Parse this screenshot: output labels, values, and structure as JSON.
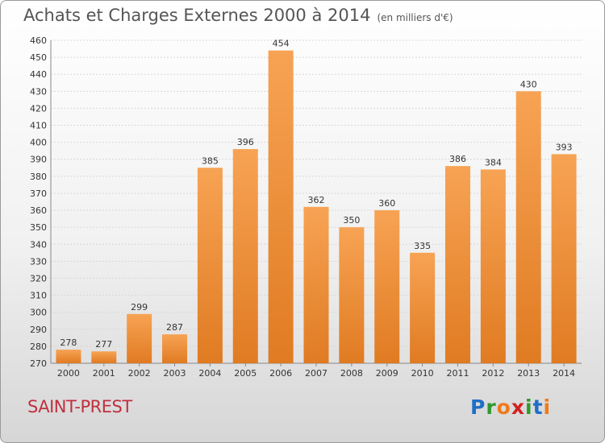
{
  "title": "Achats et Charges Externes 2000 à 2014",
  "unit": "(en milliers d'€)",
  "commune": "SAINT-PREST",
  "logo": {
    "text": "Proxiti",
    "letters": [
      "P",
      "r",
      "o",
      "x",
      "i",
      "t",
      "i"
    ],
    "colors": [
      "#1e6fc8",
      "#2e9a2e",
      "#f07a1a",
      "#d42020",
      "#2e9a2e",
      "#1e6fc8",
      "#f07a1a"
    ]
  },
  "colors": {
    "bar_top": "#f7a354",
    "bar_bottom": "#e07b22",
    "grid": "#d8d8d8",
    "text": "#333333"
  },
  "chart_data": {
    "type": "bar",
    "categories": [
      "2000",
      "2001",
      "2002",
      "2003",
      "2004",
      "2005",
      "2006",
      "2007",
      "2008",
      "2009",
      "2010",
      "2011",
      "2012",
      "2013",
      "2014"
    ],
    "values": [
      278,
      277,
      299,
      287,
      385,
      396,
      454,
      362,
      350,
      360,
      335,
      386,
      384,
      430,
      393
    ],
    "title": "Achats et Charges Externes 2000 à 2014",
    "ylim": [
      270,
      460
    ],
    "yticks": [
      270,
      280,
      290,
      300,
      310,
      320,
      330,
      340,
      350,
      360,
      370,
      380,
      390,
      400,
      410,
      420,
      430,
      440,
      450,
      460
    ],
    "grid": true
  }
}
